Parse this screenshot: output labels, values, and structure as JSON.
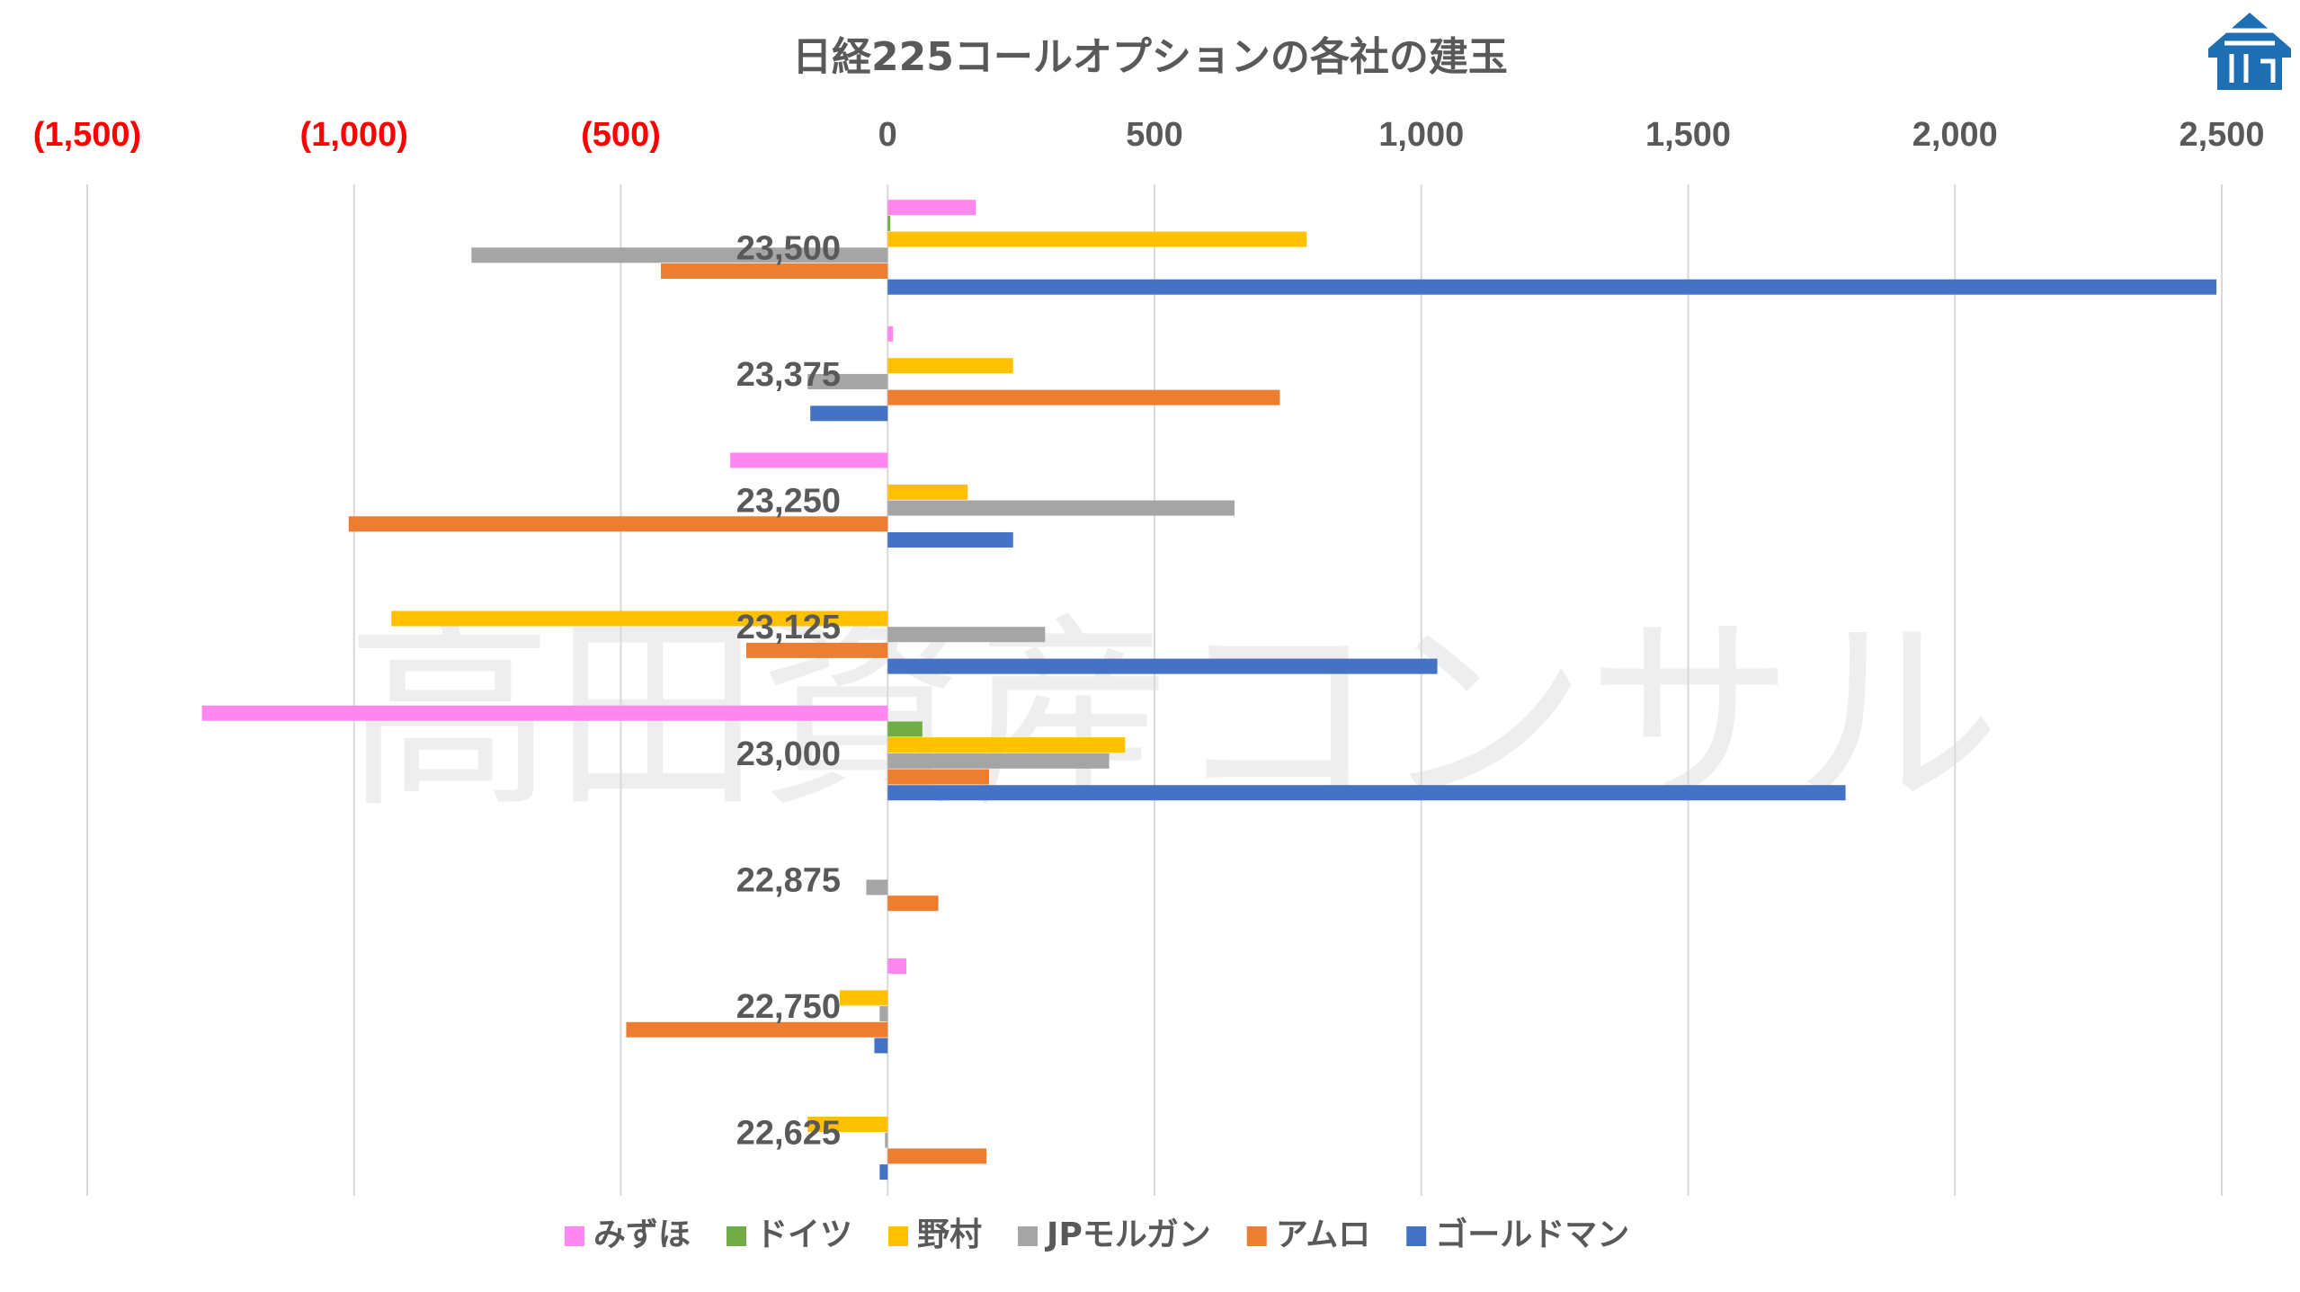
{
  "chart_data": {
    "type": "bar",
    "orientation": "horizontal",
    "title": "日経225コールオプションの各社の建玉",
    "categories": [
      "23,500",
      "23,375",
      "23,250",
      "23,125",
      "23,000",
      "22,875",
      "22,750",
      "22,625"
    ],
    "xlim": [
      -1500,
      2500
    ],
    "x_ticks": [
      {
        "value": -1500,
        "label": "(1,500)",
        "color": "#FF0000"
      },
      {
        "value": -1000,
        "label": "(1,000)",
        "color": "#FF0000"
      },
      {
        "value": -500,
        "label": "(500)",
        "color": "#FF0000"
      },
      {
        "value": 0,
        "label": "0",
        "color": "#595959"
      },
      {
        "value": 500,
        "label": "500",
        "color": "#595959"
      },
      {
        "value": 1000,
        "label": "1,000",
        "color": "#595959"
      },
      {
        "value": 1500,
        "label": "1,500",
        "color": "#595959"
      },
      {
        "value": 2000,
        "label": "2,000",
        "color": "#595959"
      },
      {
        "value": 2500,
        "label": "2,500",
        "color": "#595959"
      }
    ],
    "grid": true,
    "legend_position": "bottom",
    "series": [
      {
        "name": "みずほ",
        "color": "#FF87F0",
        "values": [
          165,
          10,
          -295,
          0,
          -1285,
          0,
          35,
          0
        ]
      },
      {
        "name": "ドイツ",
        "color": "#70AD47",
        "values": [
          5,
          0,
          0,
          0,
          65,
          0,
          0,
          0
        ]
      },
      {
        "name": "野村",
        "color": "#FFC000",
        "values": [
          785,
          235,
          150,
          -930,
          445,
          0,
          -90,
          -150
        ]
      },
      {
        "name": "JPモルガン",
        "color": "#A5A5A5",
        "values": [
          -780,
          -150,
          650,
          295,
          415,
          -40,
          -15,
          -5
        ]
      },
      {
        "name": "アムロ",
        "color": "#ED7D31",
        "values": [
          -425,
          735,
          -1010,
          -265,
          190,
          95,
          -490,
          185
        ]
      },
      {
        "name": "ゴールドマン",
        "color": "#4472C4",
        "values": [
          2490,
          -145,
          235,
          1030,
          1795,
          0,
          -25,
          -15
        ]
      }
    ]
  },
  "watermark": "高田資産コンサル",
  "logo": {
    "icon": "roof-house-logo-icon",
    "color": "#1F6FB5"
  }
}
